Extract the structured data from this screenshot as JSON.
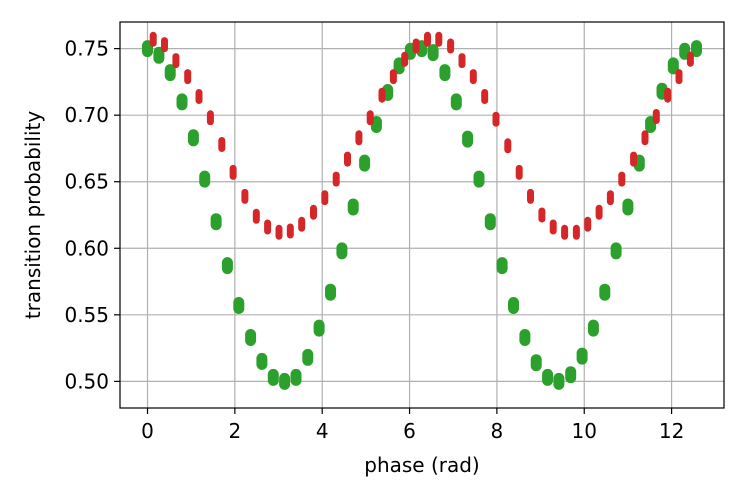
{
  "chart_data": {
    "type": "scatter",
    "title": "",
    "xlabel": "phase (rad)",
    "ylabel": "transition probability",
    "xlim": [
      -0.63,
      13.2
    ],
    "ylim": [
      0.48,
      0.77
    ],
    "xticks": [
      0,
      2,
      4,
      6,
      8,
      10,
      12
    ],
    "yticks": [
      0.5,
      0.55,
      0.6,
      0.65,
      0.7,
      0.75
    ],
    "grid": true,
    "legend": "none",
    "colors": {
      "green": "#2ca02c",
      "red": "#d62728"
    },
    "series": [
      {
        "color": "green",
        "x": [
          0.0,
          0.26,
          0.52,
          0.79,
          1.05,
          1.31,
          1.57,
          1.83,
          2.09,
          2.36,
          2.62,
          2.88,
          3.14,
          3.4,
          3.67,
          3.93,
          4.19,
          4.45,
          4.71,
          4.97,
          5.24,
          5.5,
          5.76,
          6.02,
          6.28,
          6.54,
          6.81,
          7.07,
          7.33,
          7.59,
          7.85,
          8.12,
          8.38,
          8.64,
          8.9,
          9.16,
          9.42,
          9.69,
          9.95,
          10.21,
          10.47,
          10.73,
          11.0,
          11.26,
          11.52,
          11.78,
          12.04,
          12.3,
          12.57
        ],
        "y": [
          0.75,
          0.745,
          0.732,
          0.71,
          0.683,
          0.652,
          0.62,
          0.587,
          0.557,
          0.533,
          0.515,
          0.503,
          0.5,
          0.503,
          0.518,
          0.54,
          0.567,
          0.598,
          0.631,
          0.664,
          0.693,
          0.717,
          0.737,
          0.748,
          0.75,
          0.747,
          0.732,
          0.71,
          0.682,
          0.652,
          0.62,
          0.587,
          0.557,
          0.533,
          0.514,
          0.503,
          0.5,
          0.505,
          0.519,
          0.54,
          0.567,
          0.598,
          0.631,
          0.664,
          0.693,
          0.718,
          0.737,
          0.748,
          0.75
        ]
      },
      {
        "color": "red",
        "x": [
          0.13,
          0.39,
          0.65,
          0.92,
          1.18,
          1.44,
          1.7,
          1.96,
          2.23,
          2.49,
          2.75,
          3.01,
          3.27,
          3.53,
          3.8,
          4.06,
          4.32,
          4.58,
          4.84,
          5.1,
          5.37,
          5.63,
          5.89,
          6.15,
          6.41,
          6.67,
          6.94,
          7.2,
          7.46,
          7.72,
          7.98,
          8.25,
          8.51,
          8.77,
          9.03,
          9.29,
          9.55,
          9.82,
          10.08,
          10.34,
          10.6,
          10.86,
          11.13,
          11.39,
          11.65,
          11.91,
          12.17,
          12.43
        ],
        "y": [
          0.757,
          0.753,
          0.741,
          0.729,
          0.714,
          0.698,
          0.678,
          0.657,
          0.639,
          0.624,
          0.616,
          0.612,
          0.613,
          0.618,
          0.627,
          0.638,
          0.652,
          0.667,
          0.683,
          0.698,
          0.715,
          0.729,
          0.742,
          0.752,
          0.757,
          0.757,
          0.752,
          0.741,
          0.729,
          0.714,
          0.697,
          0.677,
          0.657,
          0.639,
          0.625,
          0.616,
          0.612,
          0.612,
          0.618,
          0.627,
          0.638,
          0.652,
          0.667,
          0.683,
          0.699,
          0.715,
          0.729,
          0.742
        ]
      }
    ]
  }
}
